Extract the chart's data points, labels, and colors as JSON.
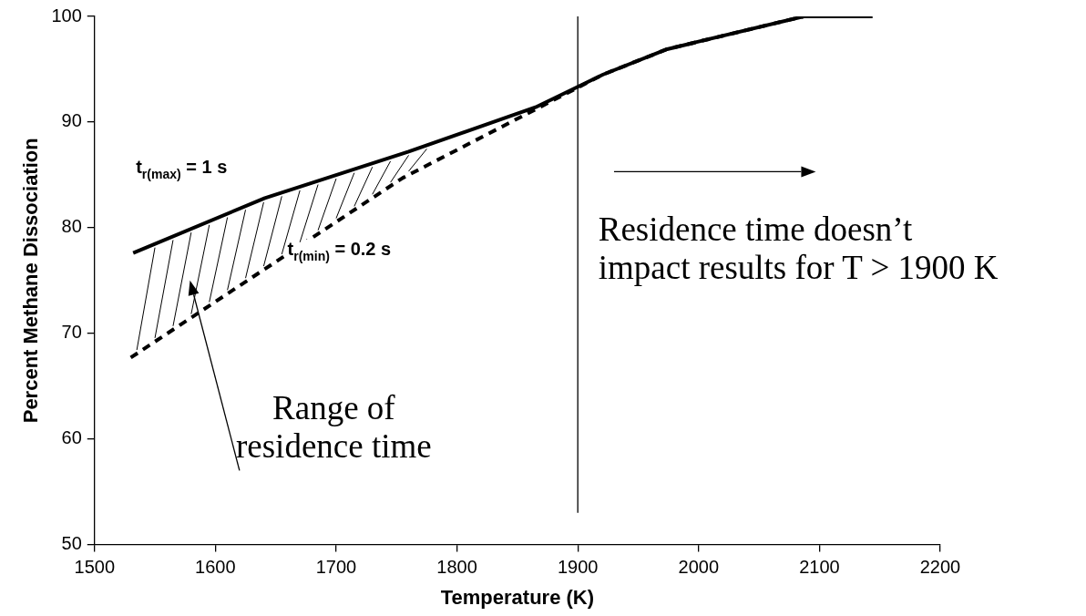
{
  "chart_data": {
    "type": "line",
    "xlabel": "Temperature (K)",
    "ylabel": "Percent Methane Dissociation",
    "xlim": [
      1500,
      2200
    ],
    "xticks": [
      1500,
      1600,
      1700,
      1800,
      1900,
      2000,
      2100,
      2200
    ],
    "ylim": [
      50,
      100
    ],
    "yticks": [
      50,
      60,
      70,
      80,
      90,
      100
    ],
    "marker": "none",
    "series": [
      {
        "name": "t$_{r(max)}$ = 1 s",
        "color": "#000000",
        "line_style": "solid",
        "x": [
          1532,
          1641,
          1760,
          1865,
          1921,
          1974,
          2087,
          2144
        ],
        "values": [
          77.6,
          82.8,
          87.2,
          91.4,
          94.5,
          96.9,
          100,
          100
        ]
      },
      {
        "name": "t$_{r(min)}$ = 0.2 s",
        "color": "#000000",
        "line_style": "dashed",
        "x": [
          1530,
          1755,
          1865,
          1921,
          1974,
          2087,
          2144
        ],
        "values": [
          67.7,
          84.7,
          91.2,
          94.5,
          96.9,
          100,
          100
        ]
      }
    ],
    "ref_lines": [
      {
        "axis": "x",
        "value": 1900,
        "color": "#000000"
      }
    ],
    "annotations": [
      "Range of residence time",
      "Residence time doesn’t impact results for T > 1900 K"
    ]
  }
}
